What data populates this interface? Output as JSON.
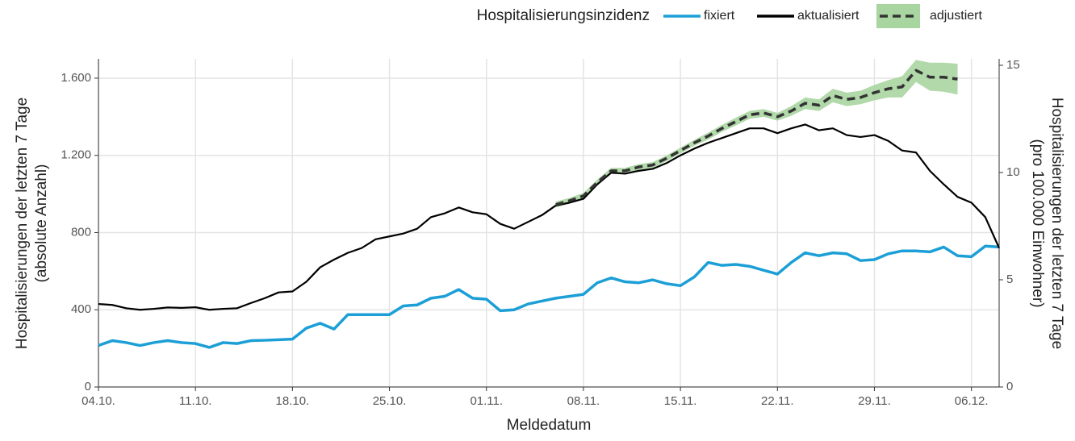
{
  "chart_data": {
    "type": "line",
    "legend_title": "Hospitalisierungsinzidenz",
    "xlabel": "Meldedatum",
    "ylabel": [
      "Hospitalisierungen der letzten 7 Tage",
      "(absolute Anzahl)"
    ],
    "y2label": [
      "Hospitalisierungen der letzten 7 Tage",
      "(pro 100.000 Einwohner)"
    ],
    "x": [
      "04.10.",
      "05.10.",
      "06.10.",
      "07.10.",
      "08.10.",
      "09.10.",
      "10.10.",
      "11.10.",
      "12.10.",
      "13.10.",
      "14.10.",
      "15.10.",
      "16.10.",
      "17.10.",
      "18.10.",
      "19.10.",
      "20.10.",
      "21.10.",
      "22.10.",
      "23.10.",
      "24.10.",
      "25.10.",
      "26.10.",
      "27.10.",
      "28.10.",
      "29.10.",
      "30.10.",
      "31.10.",
      "01.11.",
      "02.11.",
      "03.11.",
      "04.11.",
      "05.11.",
      "06.11.",
      "07.11.",
      "08.11.",
      "09.11.",
      "10.11.",
      "11.11.",
      "12.11.",
      "13.11.",
      "14.11.",
      "15.11.",
      "16.11.",
      "17.11.",
      "18.11.",
      "19.11.",
      "20.11.",
      "21.11.",
      "22.11.",
      "23.11.",
      "24.11.",
      "25.11.",
      "26.11.",
      "27.11.",
      "28.11.",
      "29.11.",
      "30.11.",
      "01.12.",
      "02.12.",
      "03.12.",
      "04.12.",
      "05.12.",
      "06.12.",
      "07.12.",
      "08.12."
    ],
    "xticks": [
      "04.10.",
      "11.10.",
      "18.10.",
      "25.10.",
      "01.11.",
      "08.11.",
      "15.11.",
      "22.11.",
      "29.11.",
      "06.12."
    ],
    "ylim": [
      0,
      1700
    ],
    "yticks": [
      0,
      400,
      800,
      {
        "value": 1200,
        "label": "1.200"
      },
      {
        "value": 1600,
        "label": "1.600"
      }
    ],
    "y2lim": [
      0,
      15.3
    ],
    "y2ticks": [
      0,
      5,
      10,
      15
    ],
    "grid": true,
    "series": [
      {
        "name": "fixiert",
        "color": "#1b9fd6",
        "style": "solid",
        "values": [
          215,
          240,
          230,
          215,
          230,
          240,
          230,
          225,
          205,
          230,
          225,
          240,
          242,
          245,
          248,
          305,
          330,
          300,
          375,
          375,
          375,
          375,
          420,
          425,
          460,
          470,
          505,
          460,
          455,
          395,
          400,
          430,
          445,
          460,
          470,
          480,
          540,
          565,
          545,
          540,
          555,
          535,
          525,
          570,
          645,
          630,
          635,
          625,
          605,
          585,
          645,
          695,
          680,
          695,
          690,
          655,
          660,
          690,
          705,
          705,
          700,
          725,
          680,
          675,
          730,
          725
        ]
      },
      {
        "name": "aktualisiert",
        "color": "#000000",
        "style": "solid",
        "values": [
          430,
          425,
          408,
          400,
          405,
          412,
          410,
          413,
          400,
          405,
          408,
          435,
          460,
          490,
          495,
          545,
          620,
          660,
          695,
          720,
          765,
          780,
          795,
          820,
          880,
          900,
          930,
          905,
          895,
          845,
          820,
          855,
          890,
          940,
          955,
          975,
          1050,
          1110,
          1105,
          1120,
          1130,
          1160,
          1200,
          1235,
          1265,
          1290,
          1315,
          1340,
          1340,
          1315,
          1340,
          1360,
          1330,
          1340,
          1305,
          1295,
          1305,
          1275,
          1225,
          1215,
          1120,
          1050,
          985,
          955,
          880,
          720
        ]
      },
      {
        "name": "adjustiert",
        "color": "#333333",
        "style": "dashed",
        "band_color": "#a8d5a0",
        "values": [
          null,
          null,
          null,
          null,
          null,
          null,
          null,
          null,
          null,
          null,
          null,
          null,
          null,
          null,
          null,
          null,
          null,
          null,
          null,
          null,
          null,
          null,
          null,
          null,
          null,
          null,
          null,
          null,
          null,
          null,
          null,
          null,
          null,
          945,
          965,
          990,
          1060,
          1120,
          1120,
          1140,
          1150,
          1185,
          1225,
          1265,
          1300,
          1340,
          1375,
          1410,
          1420,
          1400,
          1430,
          1470,
          1460,
          1510,
          1490,
          1500,
          1525,
          1545,
          1555,
          1640,
          1605,
          1605,
          1595,
          null,
          null,
          null
        ],
        "lower": [
          null,
          null,
          null,
          null,
          null,
          null,
          null,
          null,
          null,
          null,
          null,
          null,
          null,
          null,
          null,
          null,
          null,
          null,
          null,
          null,
          null,
          null,
          null,
          null,
          null,
          null,
          null,
          null,
          null,
          null,
          null,
          null,
          null,
          930,
          950,
          975,
          1045,
          1105,
          1105,
          1125,
          1135,
          1170,
          1210,
          1250,
          1282,
          1322,
          1355,
          1390,
          1400,
          1380,
          1405,
          1440,
          1430,
          1475,
          1455,
          1465,
          1485,
          1500,
          1500,
          1580,
          1535,
          1530,
          1515,
          null,
          null,
          null
        ],
        "upper": [
          null,
          null,
          null,
          null,
          null,
          null,
          null,
          null,
          null,
          null,
          null,
          null,
          null,
          null,
          null,
          null,
          null,
          null,
          null,
          null,
          null,
          null,
          null,
          null,
          null,
          null,
          null,
          null,
          null,
          null,
          null,
          null,
          null,
          960,
          980,
          1005,
          1075,
          1135,
          1135,
          1155,
          1165,
          1200,
          1240,
          1280,
          1318,
          1358,
          1395,
          1430,
          1440,
          1420,
          1455,
          1500,
          1490,
          1545,
          1525,
          1535,
          1565,
          1590,
          1610,
          1695,
          1680,
          1680,
          1675,
          null,
          null,
          null
        ]
      }
    ]
  }
}
